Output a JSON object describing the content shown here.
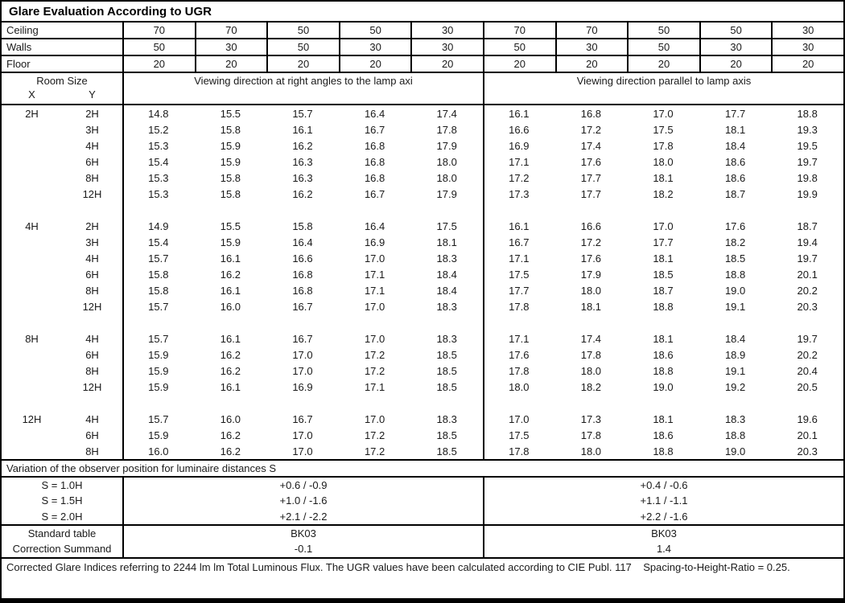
{
  "title": "Glare Evaluation According to UGR",
  "reflectances": {
    "rows": [
      {
        "label": "Ceiling",
        "values": [
          "70",
          "70",
          "50",
          "50",
          "30",
          "70",
          "70",
          "50",
          "50",
          "30"
        ]
      },
      {
        "label": "Walls",
        "values": [
          "50",
          "30",
          "50",
          "30",
          "30",
          "50",
          "30",
          "50",
          "30",
          "30"
        ]
      },
      {
        "label": "Floor",
        "values": [
          "20",
          "20",
          "20",
          "20",
          "20",
          "20",
          "20",
          "20",
          "20",
          "20"
        ]
      }
    ]
  },
  "header": {
    "room_size_label": "Room Size",
    "x_label": "X",
    "y_label": "Y",
    "left_block_label": "Viewing direction at right angles to the lamp axi",
    "right_block_label": "Viewing direction parallel to lamp axis"
  },
  "ugr_groups": [
    {
      "x": "2H",
      "rows": [
        {
          "y": "2H",
          "values": [
            "14.8",
            "15.5",
            "15.7",
            "16.4",
            "17.4",
            "16.1",
            "16.8",
            "17.0",
            "17.7",
            "18.8"
          ]
        },
        {
          "y": "3H",
          "values": [
            "15.2",
            "15.8",
            "16.1",
            "16.7",
            "17.8",
            "16.6",
            "17.2",
            "17.5",
            "18.1",
            "19.3"
          ]
        },
        {
          "y": "4H",
          "values": [
            "15.3",
            "15.9",
            "16.2",
            "16.8",
            "17.9",
            "16.9",
            "17.4",
            "17.8",
            "18.4",
            "19.5"
          ]
        },
        {
          "y": "6H",
          "values": [
            "15.4",
            "15.9",
            "16.3",
            "16.8",
            "18.0",
            "17.1",
            "17.6",
            "18.0",
            "18.6",
            "19.7"
          ]
        },
        {
          "y": "8H",
          "values": [
            "15.3",
            "15.8",
            "16.3",
            "16.8",
            "18.0",
            "17.2",
            "17.7",
            "18.1",
            "18.6",
            "19.8"
          ]
        },
        {
          "y": "12H",
          "values": [
            "15.3",
            "15.8",
            "16.2",
            "16.7",
            "17.9",
            "17.3",
            "17.7",
            "18.2",
            "18.7",
            "19.9"
          ]
        }
      ]
    },
    {
      "x": "4H",
      "rows": [
        {
          "y": "2H",
          "values": [
            "14.9",
            "15.5",
            "15.8",
            "16.4",
            "17.5",
            "16.1",
            "16.6",
            "17.0",
            "17.6",
            "18.7"
          ]
        },
        {
          "y": "3H",
          "values": [
            "15.4",
            "15.9",
            "16.4",
            "16.9",
            "18.1",
            "16.7",
            "17.2",
            "17.7",
            "18.2",
            "19.4"
          ]
        },
        {
          "y": "4H",
          "values": [
            "15.7",
            "16.1",
            "16.6",
            "17.0",
            "18.3",
            "17.1",
            "17.6",
            "18.1",
            "18.5",
            "19.7"
          ]
        },
        {
          "y": "6H",
          "values": [
            "15.8",
            "16.2",
            "16.8",
            "17.1",
            "18.4",
            "17.5",
            "17.9",
            "18.5",
            "18.8",
            "20.1"
          ]
        },
        {
          "y": "8H",
          "values": [
            "15.8",
            "16.1",
            "16.8",
            "17.1",
            "18.4",
            "17.7",
            "18.0",
            "18.7",
            "19.0",
            "20.2"
          ]
        },
        {
          "y": "12H",
          "values": [
            "15.7",
            "16.0",
            "16.7",
            "17.0",
            "18.3",
            "17.8",
            "18.1",
            "18.8",
            "19.1",
            "20.3"
          ]
        }
      ]
    },
    {
      "x": "8H",
      "rows": [
        {
          "y": "4H",
          "values": [
            "15.7",
            "16.1",
            "16.7",
            "17.0",
            "18.3",
            "17.1",
            "17.4",
            "18.1",
            "18.4",
            "19.7"
          ]
        },
        {
          "y": "6H",
          "values": [
            "15.9",
            "16.2",
            "17.0",
            "17.2",
            "18.5",
            "17.6",
            "17.8",
            "18.6",
            "18.9",
            "20.2"
          ]
        },
        {
          "y": "8H",
          "values": [
            "15.9",
            "16.2",
            "17.0",
            "17.2",
            "18.5",
            "17.8",
            "18.0",
            "18.8",
            "19.1",
            "20.4"
          ]
        },
        {
          "y": "12H",
          "values": [
            "15.9",
            "16.1",
            "16.9",
            "17.1",
            "18.5",
            "18.0",
            "18.2",
            "19.0",
            "19.2",
            "20.5"
          ]
        }
      ]
    },
    {
      "x": "12H",
      "rows": [
        {
          "y": "4H",
          "values": [
            "15.7",
            "16.0",
            "16.7",
            "17.0",
            "18.3",
            "17.0",
            "17.3",
            "18.1",
            "18.3",
            "19.6"
          ]
        },
        {
          "y": "6H",
          "values": [
            "15.9",
            "16.2",
            "17.0",
            "17.2",
            "18.5",
            "17.5",
            "17.8",
            "18.6",
            "18.8",
            "20.1"
          ]
        },
        {
          "y": "8H",
          "values": [
            "16.0",
            "16.2",
            "17.0",
            "17.2",
            "18.5",
            "17.8",
            "18.0",
            "18.8",
            "19.0",
            "20.3"
          ]
        }
      ]
    }
  ],
  "variation": {
    "header": "Variation of the observer position for luminaire distances S",
    "rows": [
      {
        "label": "S = 1.0H",
        "left": "+0.6 / -0.9",
        "right": "+0.4 / -0.6"
      },
      {
        "label": "S = 1.5H",
        "left": "+1.0 / -1.6",
        "right": "+1.1 / -1.1"
      },
      {
        "label": "S = 2.0H",
        "left": "+2.1 / -2.2",
        "right": "+2.2 / -1.6"
      }
    ]
  },
  "summary": {
    "rows": [
      {
        "label": "Standard table",
        "left": "BK03",
        "right": "BK03"
      },
      {
        "label": "Correction Summand",
        "left": "-0.1",
        "right": "1.4"
      }
    ]
  },
  "footer": "Corrected Glare Indices referring to 2244 lm lm Total Luminous Flux. The UGR values have been calculated according to CIE Publ. 117    Spacing-to-Height-Ratio = 0.25."
}
